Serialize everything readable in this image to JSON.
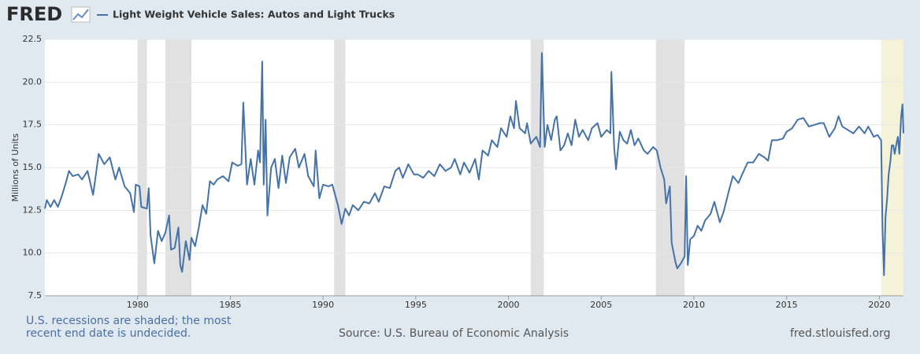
{
  "logo": "FRED",
  "chart_data": {
    "type": "line",
    "title": "Light Weight Vehicle Sales: Autos and Light Trucks",
    "y_label": "Millions of Units",
    "note": "U.S. recessions are shaded; the most recent end date is undecided.",
    "source": "Source: U.S. Bureau of Economic Analysis",
    "site": "fred.stlouisfed.org",
    "xlim": [
      1975,
      2021.3
    ],
    "xticks": [
      1980,
      1985,
      1990,
      1995,
      2000,
      2005,
      2010,
      2015,
      2020
    ],
    "ylim": [
      7.5,
      22.5
    ],
    "yticks": [
      7.5,
      {
        "value": 10,
        "label": "10.0"
      },
      12.5,
      {
        "value": 15,
        "label": "15.0"
      },
      17.5,
      {
        "value": 20,
        "label": "20.0"
      },
      22.5
    ],
    "grid": true,
    "shaded": [
      {
        "start": 1980,
        "end": 1980.5,
        "color": "#e1e1e1"
      },
      {
        "start": 1981.5,
        "end": 1982.9,
        "color": "#e1e1e1"
      },
      {
        "start": 1990.6,
        "end": 1991.2,
        "color": "#e1e1e1"
      },
      {
        "start": 2001.2,
        "end": 2001.9,
        "color": "#e1e1e1"
      },
      {
        "start": 2007.95,
        "end": 2009.5,
        "color": "#e1e1e1"
      },
      {
        "start": 2020.1,
        "end": 2021.3,
        "color": "#f4f2d9"
      }
    ],
    "x": [
      1975.0,
      1975.1,
      1975.3,
      1975.5,
      1975.7,
      1975.9,
      1976.1,
      1976.3,
      1976.5,
      1976.8,
      1977.0,
      1977.3,
      1977.6,
      1977.9,
      1978.2,
      1978.5,
      1978.8,
      1979.0,
      1979.3,
      1979.6,
      1979.8,
      1979.9,
      1980.1,
      1980.2,
      1980.5,
      1980.6,
      1980.7,
      1980.9,
      1981.1,
      1981.3,
      1981.5,
      1981.7,
      1981.8,
      1982.0,
      1982.2,
      1982.3,
      1982.4,
      1982.6,
      1982.8,
      1982.9,
      1983.1,
      1983.3,
      1983.5,
      1983.7,
      1983.9,
      1984.1,
      1984.3,
      1984.6,
      1984.9,
      1985.1,
      1985.4,
      1985.6,
      1985.7,
      1985.9,
      1986.1,
      1986.3,
      1986.5,
      1986.6,
      1986.72,
      1986.8,
      1986.9,
      1987.0,
      1987.2,
      1987.4,
      1987.6,
      1987.8,
      1988.0,
      1988.2,
      1988.5,
      1988.7,
      1989.0,
      1989.2,
      1989.5,
      1989.6,
      1989.8,
      1990.0,
      1990.3,
      1990.5,
      1990.8,
      1991.0,
      1991.2,
      1991.4,
      1991.6,
      1991.9,
      1992.2,
      1992.5,
      1992.8,
      1993.0,
      1993.3,
      1993.6,
      1993.9,
      1994.1,
      1994.3,
      1994.6,
      1994.9,
      1995.1,
      1995.4,
      1995.7,
      1996.0,
      1996.3,
      1996.6,
      1996.9,
      1997.1,
      1997.4,
      1997.6,
      1997.9,
      1998.2,
      1998.4,
      1998.6,
      1998.9,
      1999.1,
      1999.4,
      1999.6,
      1999.9,
      2000.1,
      2000.3,
      2000.4,
      2000.6,
      2000.9,
      2001.0,
      2001.2,
      2001.5,
      2001.7,
      2001.8,
      2001.95,
      2002.1,
      2002.3,
      2002.5,
      2002.6,
      2002.8,
      2003.0,
      2003.2,
      2003.4,
      2003.6,
      2003.8,
      2004.0,
      2004.3,
      2004.5,
      2004.8,
      2005.0,
      2005.3,
      2005.5,
      2005.55,
      2005.7,
      2005.8,
      2006.0,
      2006.2,
      2006.4,
      2006.6,
      2006.8,
      2007.0,
      2007.3,
      2007.5,
      2007.8,
      2008.0,
      2008.2,
      2008.4,
      2008.5,
      2008.7,
      2008.8,
      2009.0,
      2009.1,
      2009.3,
      2009.5,
      2009.58,
      2009.67,
      2009.8,
      2010.0,
      2010.2,
      2010.4,
      2010.6,
      2010.9,
      2011.1,
      2011.4,
      2011.6,
      2011.9,
      2012.1,
      2012.4,
      2012.6,
      2012.9,
      2013.2,
      2013.5,
      2013.8,
      2014.0,
      2014.2,
      2014.5,
      2014.8,
      2015.0,
      2015.3,
      2015.6,
      2015.9,
      2016.2,
      2016.5,
      2016.8,
      2017.0,
      2017.3,
      2017.6,
      2017.8,
      2018.0,
      2018.3,
      2018.6,
      2018.9,
      2019.2,
      2019.4,
      2019.7,
      2019.9,
      2020.1,
      2020.17,
      2020.25,
      2020.33,
      2020.42,
      2020.5,
      2020.6,
      2020.67,
      2020.75,
      2020.83,
      2020.92,
      2021.0,
      2021.08,
      2021.17,
      2021.25,
      2021.3
    ],
    "series": [
      {
        "name": "Light Weight Vehicle Sales: Autos and Light Trucks",
        "color": "#4572a7",
        "values": [
          12.6,
          13.1,
          12.7,
          13.1,
          12.7,
          13.3,
          14.0,
          14.8,
          14.5,
          14.6,
          14.3,
          14.8,
          13.4,
          15.8,
          15.2,
          15.6,
          14.3,
          15.0,
          13.9,
          13.5,
          12.4,
          14.0,
          13.9,
          12.7,
          12.6,
          13.8,
          11.0,
          9.4,
          11.3,
          10.7,
          11.2,
          12.2,
          10.2,
          10.3,
          11.5,
          9.3,
          8.9,
          10.7,
          9.6,
          10.9,
          10.4,
          11.5,
          12.8,
          12.3,
          14.2,
          14.0,
          14.3,
          14.5,
          14.2,
          15.3,
          15.1,
          15.2,
          18.8,
          14.0,
          15.5,
          14.0,
          16.0,
          15.3,
          21.2,
          14.0,
          17.8,
          12.2,
          15.0,
          15.5,
          13.8,
          15.7,
          14.1,
          15.6,
          16.1,
          15.0,
          15.8,
          14.5,
          13.9,
          16.0,
          13.2,
          14.0,
          13.9,
          14.0,
          12.8,
          11.7,
          12.6,
          12.2,
          12.8,
          12.5,
          13.0,
          12.9,
          13.5,
          13.0,
          13.9,
          13.8,
          14.8,
          15.0,
          14.4,
          15.2,
          14.6,
          14.6,
          14.4,
          14.8,
          14.5,
          15.2,
          14.8,
          15.0,
          15.5,
          14.6,
          15.3,
          14.7,
          15.5,
          14.3,
          16.0,
          15.7,
          16.6,
          16.2,
          17.3,
          16.8,
          18.0,
          17.3,
          18.9,
          17.3,
          17.0,
          17.6,
          16.4,
          16.8,
          16.2,
          21.7,
          16.2,
          17.5,
          16.6,
          17.8,
          18.0,
          16.0,
          16.3,
          17.0,
          16.3,
          17.8,
          16.8,
          17.2,
          16.6,
          17.3,
          17.6,
          16.8,
          17.2,
          17.0,
          20.6,
          16.2,
          14.9,
          17.1,
          16.6,
          16.4,
          17.2,
          16.3,
          16.7,
          16.0,
          15.8,
          16.2,
          16.0,
          15.0,
          14.3,
          12.9,
          13.9,
          10.6,
          9.5,
          9.1,
          9.4,
          9.8,
          14.5,
          9.3,
          10.8,
          11.0,
          11.6,
          11.3,
          11.9,
          12.3,
          13.0,
          11.8,
          12.4,
          13.7,
          14.5,
          14.1,
          14.6,
          15.3,
          15.3,
          15.8,
          15.6,
          15.4,
          16.6,
          16.6,
          16.7,
          17.1,
          17.3,
          17.8,
          17.9,
          17.4,
          17.5,
          17.6,
          17.6,
          16.8,
          17.3,
          18.0,
          17.4,
          17.2,
          17.0,
          17.4,
          17.0,
          17.4,
          16.8,
          16.9,
          16.6,
          11.4,
          8.7,
          12.1,
          13.2,
          14.6,
          15.4,
          16.3,
          16.3,
          15.8,
          16.4,
          16.8,
          15.8,
          17.9,
          18.7,
          17.0
        ]
      }
    ]
  }
}
